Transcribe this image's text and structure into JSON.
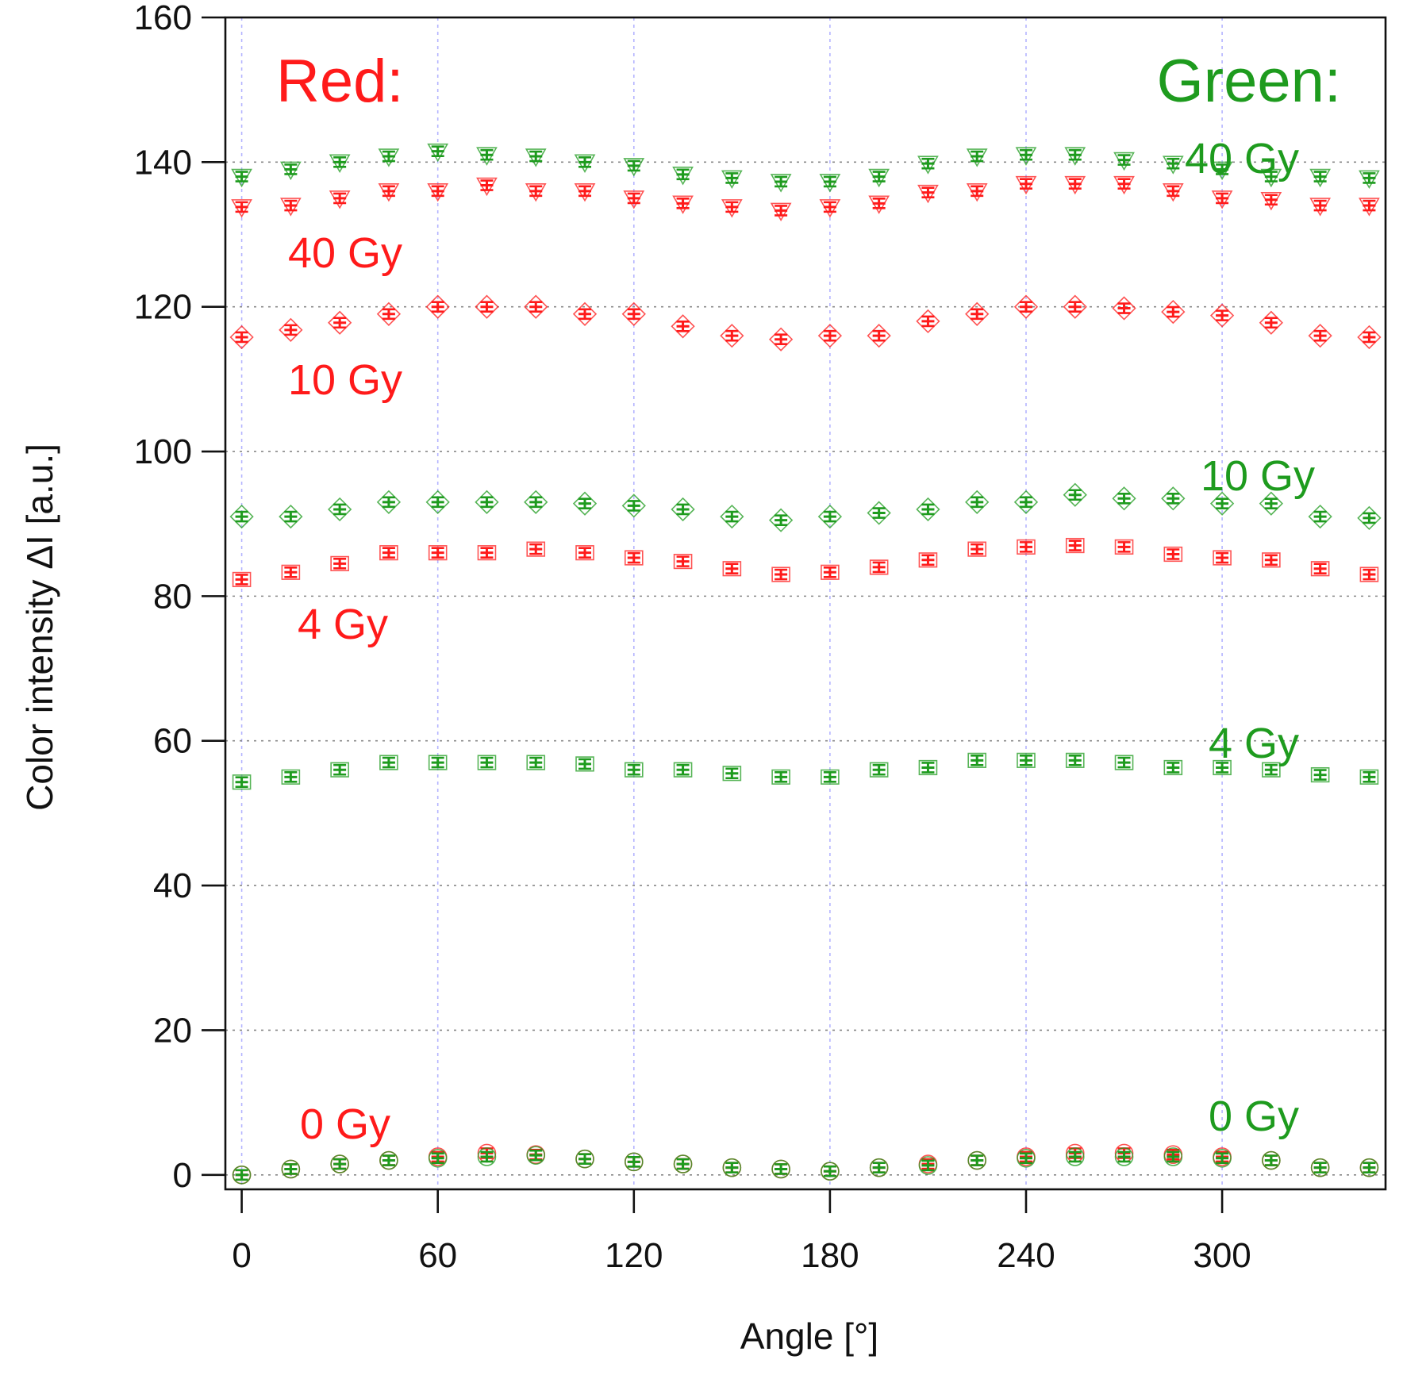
{
  "chart_data": {
    "type": "scatter",
    "xlabel": "Angle [°]",
    "ylabel": "Color intensity ΔI [a.u.]",
    "xlim": [
      -5,
      350
    ],
    "ylim": [
      -2,
      160
    ],
    "xticks": [
      0,
      60,
      120,
      180,
      240,
      300
    ],
    "yticks": [
      0,
      20,
      40,
      60,
      80,
      100,
      120,
      140,
      160
    ],
    "grid": true,
    "x": [
      0,
      15,
      30,
      45,
      60,
      75,
      90,
      105,
      120,
      135,
      150,
      165,
      180,
      195,
      210,
      225,
      240,
      255,
      270,
      285,
      300,
      315,
      330,
      345
    ],
    "colors": {
      "red": "#ff1a1a",
      "green": "#1e9b1e",
      "grid_x": "#b4b4ff",
      "grid_y": "#888888",
      "axis": "#111111"
    },
    "headers": [
      {
        "name": "red-header",
        "text": "Red:",
        "color": "#ff1a1a"
      },
      {
        "name": "green-header",
        "text": "Green:",
        "color": "#1e9b1e"
      }
    ],
    "series": [
      {
        "name": "Red 0 Gy",
        "label": "0 Gy",
        "channel": "red",
        "marker": "circle",
        "y": [
          0,
          0.8,
          1.5,
          2,
          2.5,
          3,
          2.8,
          2.2,
          1.8,
          1.5,
          1,
          0.8,
          0.5,
          1,
          1.5,
          2,
          2.5,
          3,
          3,
          2.8,
          2.5,
          2,
          1,
          1
        ]
      },
      {
        "name": "Red 4 Gy",
        "label": "4 Gy",
        "channel": "red",
        "marker": "square",
        "y": [
          82.3,
          83.3,
          84.5,
          86,
          86,
          86,
          86.5,
          86,
          85.3,
          84.8,
          83.8,
          83,
          83.3,
          84,
          85,
          86.5,
          86.8,
          87,
          86.8,
          85.8,
          85.3,
          85,
          83.8,
          83
        ]
      },
      {
        "name": "Red 10 Gy",
        "label": "10 Gy",
        "channel": "red",
        "marker": "diamond",
        "y": [
          115.8,
          116.8,
          117.8,
          119,
          120,
          120,
          120,
          119,
          119,
          117.3,
          116,
          115.5,
          116,
          116,
          118,
          119,
          120,
          120,
          119.8,
          119.3,
          118.8,
          117.8,
          116,
          115.8
        ]
      },
      {
        "name": "Red 40 Gy",
        "label": "40 Gy",
        "channel": "red",
        "marker": "triangle-down",
        "y": [
          133.8,
          134,
          135,
          136,
          136,
          136.8,
          136,
          136,
          135,
          134.3,
          133.8,
          133.3,
          133.8,
          134.3,
          135.8,
          136,
          137,
          137,
          137,
          136,
          135,
          134.8,
          134,
          134
        ]
      },
      {
        "name": "Green 0 Gy",
        "label": "0 Gy",
        "channel": "green",
        "marker": "circle",
        "y": [
          0,
          0.8,
          1.5,
          2,
          2.3,
          2.5,
          2.7,
          2.2,
          1.8,
          1.5,
          1,
          0.8,
          0.5,
          1,
          1.3,
          2,
          2.3,
          2.5,
          2.5,
          2.5,
          2.3,
          2,
          1,
          1
        ]
      },
      {
        "name": "Green 4 Gy",
        "label": "4 Gy",
        "channel": "green",
        "marker": "square",
        "y": [
          54.3,
          55,
          56,
          57,
          57,
          57,
          57,
          56.8,
          56,
          56,
          55.5,
          55,
          55,
          56,
          56.3,
          57.3,
          57.3,
          57.3,
          57,
          56.3,
          56.3,
          56,
          55.3,
          55
        ]
      },
      {
        "name": "Green 10 Gy",
        "label": "10 Gy",
        "channel": "green",
        "marker": "diamond",
        "y": [
          91,
          91,
          92,
          93,
          93,
          93,
          93,
          92.8,
          92.5,
          92,
          91,
          90.5,
          91,
          91.5,
          92,
          93,
          93,
          94,
          93.5,
          93.5,
          92.8,
          92.8,
          91,
          90.8
        ]
      },
      {
        "name": "Green 40 Gy",
        "label": "40 Gy",
        "channel": "green",
        "marker": "triangle-down",
        "y": [
          138,
          139,
          140,
          140.8,
          141.5,
          141,
          140.8,
          140,
          139.5,
          138.3,
          137.8,
          137.3,
          137.3,
          138,
          139.8,
          140.8,
          141,
          141,
          140.3,
          139.8,
          139,
          138,
          138,
          137.8
        ]
      }
    ]
  }
}
